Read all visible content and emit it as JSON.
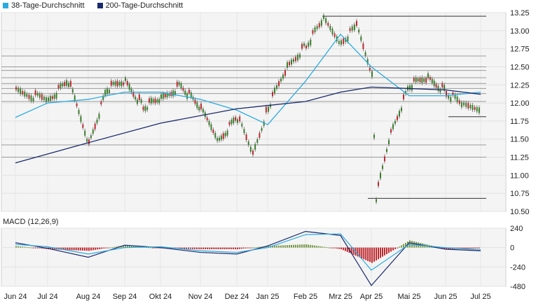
{
  "legend": [
    {
      "label": "38-Tage-Durchschnitt",
      "color": "#29abe2"
    },
    {
      "label": "200-Tage-Durchschnitt",
      "color": "#1a2a6c"
    }
  ],
  "macd_label": "MACD (12,26,9)",
  "chart_data": [
    {
      "type": "candlestick",
      "title": "",
      "ylim": [
        10.5,
        13.25
      ],
      "y_ticks": [
        "13.25",
        "13.00",
        "12.75",
        "12.50",
        "12.25",
        "12.00",
        "11.75",
        "11.50",
        "11.25",
        "11.00",
        "10.75",
        "10.50"
      ],
      "x_ticks": [
        "Jun 24",
        "Jul 24",
        "Aug 24",
        "Sep 24",
        "Okt 24",
        "Nov 24",
        "Dez 24",
        "Jan 25",
        "Feb 25",
        "Mrz 25",
        "Apr 25",
        "Mai 25",
        "Jun 25",
        "Jul 25"
      ],
      "close_series_approx": [
        {
          "x": "Jun 24",
          "y": 12.15
        },
        {
          "x": "Jul 24",
          "y": 12.05
        },
        {
          "x": "Jul 24 mid",
          "y": 12.3
        },
        {
          "x": "Aug 24",
          "y": 11.45
        },
        {
          "x": "Aug 24 mid",
          "y": 12.2
        },
        {
          "x": "Sep 24",
          "y": 12.3
        },
        {
          "x": "Sep 24 mid",
          "y": 11.95
        },
        {
          "x": "Okt 24",
          "y": 12.05
        },
        {
          "x": "Okt 24 mid",
          "y": 12.25
        },
        {
          "x": "Nov 24",
          "y": 11.9
        },
        {
          "x": "Nov 24 mid",
          "y": 11.5
        },
        {
          "x": "Dez 24",
          "y": 11.8
        },
        {
          "x": "Dez 24 mid",
          "y": 11.3
        },
        {
          "x": "Jan 25",
          "y": 11.95
        },
        {
          "x": "Jan 25 mid",
          "y": 12.5
        },
        {
          "x": "Feb 25",
          "y": 12.8
        },
        {
          "x": "Feb 25 mid",
          "y": 13.15
        },
        {
          "x": "Mrz 25",
          "y": 12.85
        },
        {
          "x": "Mrz 25 mid",
          "y": 13.05
        },
        {
          "x": "Apr 25",
          "y": 12.4
        },
        {
          "x": "Apr 25 low",
          "y": 10.7
        },
        {
          "x": "Apr 25 mid",
          "y": 11.6
        },
        {
          "x": "Mai 25",
          "y": 12.25
        },
        {
          "x": "Mai 25 mid",
          "y": 12.35
        },
        {
          "x": "Jun 25",
          "y": 12.15
        },
        {
          "x": "Jun 25 mid",
          "y": 11.95
        },
        {
          "x": "Jul 25",
          "y": 11.95
        }
      ],
      "series": [
        {
          "name": "38-Tage-Durchschnitt",
          "points": [
            {
              "x": "Jun 24",
              "y": 11.8
            },
            {
              "x": "Jul 24",
              "y": 12.0
            },
            {
              "x": "Aug 24",
              "y": 12.05
            },
            {
              "x": "Sep 24",
              "y": 12.15
            },
            {
              "x": "Okt 24",
              "y": 12.15
            },
            {
              "x": "Nov 24",
              "y": 12.05
            },
            {
              "x": "Dez 24",
              "y": 11.9
            },
            {
              "x": "Jan 25",
              "y": 11.7
            },
            {
              "x": "Feb 25",
              "y": 12.3
            },
            {
              "x": "Mrz 25",
              "y": 12.95
            },
            {
              "x": "Apr 25",
              "y": 12.5
            },
            {
              "x": "Mai 25",
              "y": 12.1
            },
            {
              "x": "Jun 25",
              "y": 12.1
            },
            {
              "x": "Jul 25",
              "y": 12.15
            }
          ]
        },
        {
          "name": "200-Tage-Durchschnitt",
          "points": [
            {
              "x": "Jun 24",
              "y": 11.17
            },
            {
              "x": "Aug 24",
              "y": 11.45
            },
            {
              "x": "Okt 24",
              "y": 11.72
            },
            {
              "x": "Dez 24",
              "y": 11.92
            },
            {
              "x": "Feb 25",
              "y": 12.02
            },
            {
              "x": "Mrz 25",
              "y": 12.15
            },
            {
              "x": "Apr 25",
              "y": 12.22
            },
            {
              "x": "Mai 25",
              "y": 12.2
            },
            {
              "x": "Jun 25",
              "y": 12.18
            },
            {
              "x": "Jul 25",
              "y": 12.12
            }
          ]
        }
      ],
      "reference_lines": [
        13.2,
        12.65,
        12.5,
        12.45,
        12.35,
        12.27,
        12.2,
        12.13,
        12.02,
        11.81,
        11.42,
        11.25,
        10.68
      ],
      "grid": true,
      "legend_position": "top-left"
    },
    {
      "type": "macd",
      "title": "MACD (12,26,9)",
      "ylim": [
        -480,
        240
      ],
      "y_ticks": [
        "240",
        "0",
        "-240",
        "-480"
      ],
      "series": [
        {
          "name": "MACD",
          "points": [
            {
              "x": "Jun 24",
              "y": 60
            },
            {
              "x": "Jul 24",
              "y": -10
            },
            {
              "x": "Aug 24",
              "y": -120
            },
            {
              "x": "Sep 24",
              "y": 30
            },
            {
              "x": "Okt 24",
              "y": 0
            },
            {
              "x": "Nov 24",
              "y": -60
            },
            {
              "x": "Dez 24",
              "y": -80
            },
            {
              "x": "Jan 25",
              "y": 20
            },
            {
              "x": "Feb 25",
              "y": 200
            },
            {
              "x": "Mrz 25",
              "y": 150
            },
            {
              "x": "Apr 25",
              "y": -470
            },
            {
              "x": "Mai 25",
              "y": 60
            },
            {
              "x": "Jun 25",
              "y": -20
            },
            {
              "x": "Jul 25",
              "y": -40
            }
          ]
        },
        {
          "name": "Signal",
          "points": [
            {
              "x": "Jun 24",
              "y": 40
            },
            {
              "x": "Jul 24",
              "y": 10
            },
            {
              "x": "Aug 24",
              "y": -80
            },
            {
              "x": "Sep 24",
              "y": 0
            },
            {
              "x": "Okt 24",
              "y": 10
            },
            {
              "x": "Nov 24",
              "y": -40
            },
            {
              "x": "Dez 24",
              "y": -60
            },
            {
              "x": "Jan 25",
              "y": 0
            },
            {
              "x": "Feb 25",
              "y": 160
            },
            {
              "x": "Mrz 25",
              "y": 170
            },
            {
              "x": "Apr 25",
              "y": -280
            },
            {
              "x": "Mai 25",
              "y": 40
            },
            {
              "x": "Jun 25",
              "y": 0
            },
            {
              "x": "Jul 25",
              "y": -30
            }
          ]
        }
      ],
      "histogram_approx": [
        {
          "x": "Jun 24",
          "y": 20
        },
        {
          "x": "Jul 24",
          "y": -20
        },
        {
          "x": "Aug 24",
          "y": -40
        },
        {
          "x": "Sep 24",
          "y": 30
        },
        {
          "x": "Okt 24",
          "y": -10
        },
        {
          "x": "Nov 24",
          "y": -20
        },
        {
          "x": "Dez 24",
          "y": -20
        },
        {
          "x": "Jan 25",
          "y": 20
        },
        {
          "x": "Feb 25",
          "y": 40
        },
        {
          "x": "Mrz 25",
          "y": -20
        },
        {
          "x": "Apr 25",
          "y": -190
        },
        {
          "x": "Mai 25",
          "y": 90
        },
        {
          "x": "Jun 25",
          "y": -20
        },
        {
          "x": "Jul 25",
          "y": -10
        }
      ]
    }
  ]
}
